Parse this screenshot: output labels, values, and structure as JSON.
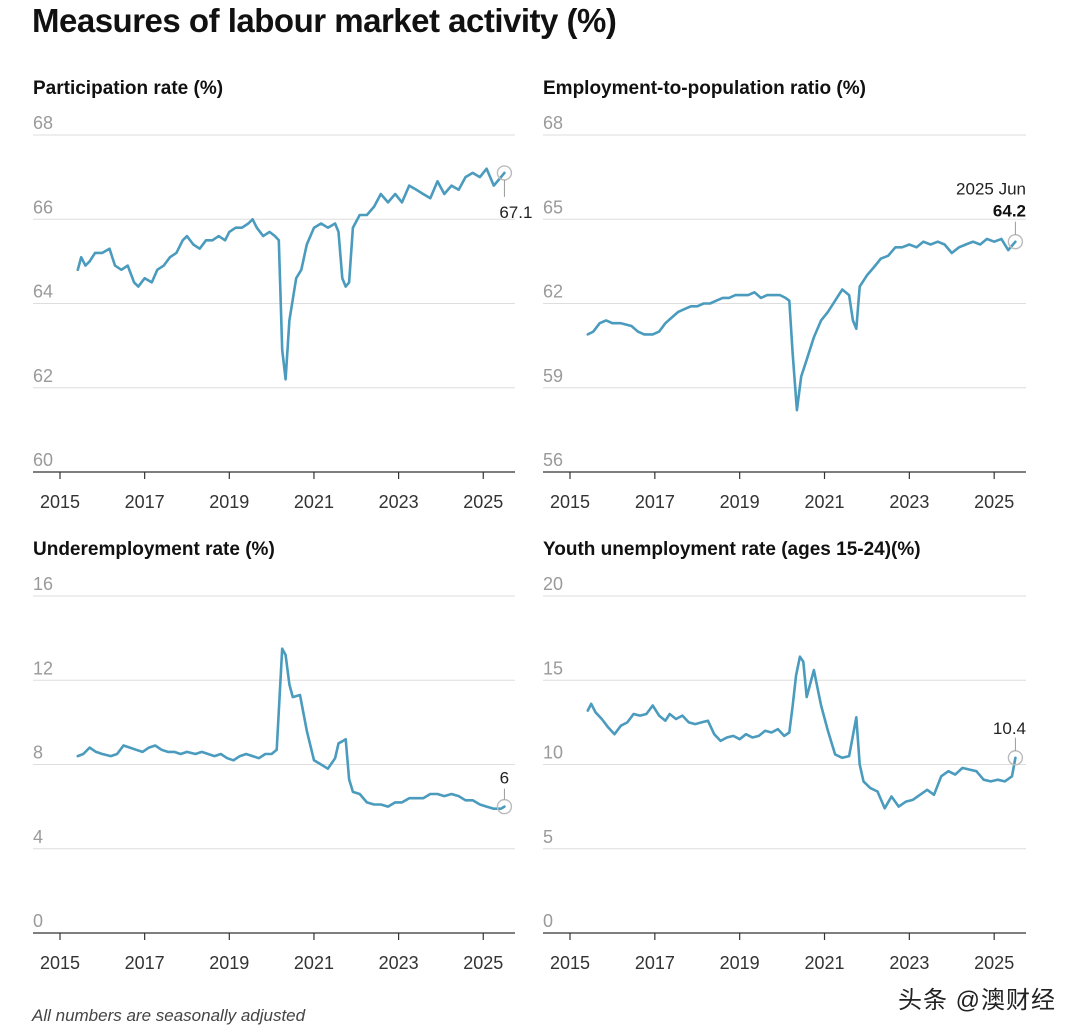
{
  "title": "Measures of labour market activity (%)",
  "footnote": "All numbers are seasonally adjusted",
  "watermark": "头条 @澳财经",
  "series_color": "#4a9bbd",
  "chart_data": [
    {
      "type": "line",
      "title": "Participation rate (%)",
      "ylim": [
        60,
        68
      ],
      "yticks": [
        60,
        62,
        64,
        66,
        68
      ],
      "xlim": [
        2015,
        2025.75
      ],
      "xticks": [
        "2015",
        "2017",
        "2019",
        "2021",
        "2023",
        "2025"
      ],
      "end_label": "67.1",
      "points": [
        [
          2015.42,
          64.8
        ],
        [
          2015.5,
          65.1
        ],
        [
          2015.6,
          64.9
        ],
        [
          2015.7,
          65.0
        ],
        [
          2015.83,
          65.2
        ],
        [
          2016.0,
          65.2
        ],
        [
          2016.17,
          65.3
        ],
        [
          2016.3,
          64.9
        ],
        [
          2016.45,
          64.8
        ],
        [
          2016.6,
          64.9
        ],
        [
          2016.75,
          64.5
        ],
        [
          2016.85,
          64.4
        ],
        [
          2017.0,
          64.6
        ],
        [
          2017.17,
          64.5
        ],
        [
          2017.3,
          64.8
        ],
        [
          2017.45,
          64.9
        ],
        [
          2017.6,
          65.1
        ],
        [
          2017.75,
          65.2
        ],
        [
          2017.9,
          65.5
        ],
        [
          2018.0,
          65.6
        ],
        [
          2018.15,
          65.4
        ],
        [
          2018.3,
          65.3
        ],
        [
          2018.45,
          65.5
        ],
        [
          2018.6,
          65.5
        ],
        [
          2018.75,
          65.6
        ],
        [
          2018.9,
          65.5
        ],
        [
          2019.0,
          65.7
        ],
        [
          2019.15,
          65.8
        ],
        [
          2019.3,
          65.8
        ],
        [
          2019.45,
          65.9
        ],
        [
          2019.55,
          66.0
        ],
        [
          2019.65,
          65.8
        ],
        [
          2019.8,
          65.6
        ],
        [
          2019.95,
          65.7
        ],
        [
          2020.08,
          65.6
        ],
        [
          2020.17,
          65.5
        ],
        [
          2020.25,
          62.9
        ],
        [
          2020.33,
          62.2
        ],
        [
          2020.42,
          63.6
        ],
        [
          2020.58,
          64.6
        ],
        [
          2020.7,
          64.8
        ],
        [
          2020.83,
          65.4
        ],
        [
          2021.0,
          65.8
        ],
        [
          2021.17,
          65.9
        ],
        [
          2021.33,
          65.8
        ],
        [
          2021.5,
          65.9
        ],
        [
          2021.58,
          65.7
        ],
        [
          2021.67,
          64.6
        ],
        [
          2021.75,
          64.4
        ],
        [
          2021.83,
          64.5
        ],
        [
          2021.92,
          65.8
        ],
        [
          2022.08,
          66.1
        ],
        [
          2022.25,
          66.1
        ],
        [
          2022.42,
          66.3
        ],
        [
          2022.58,
          66.6
        ],
        [
          2022.75,
          66.4
        ],
        [
          2022.92,
          66.6
        ],
        [
          2023.08,
          66.4
        ],
        [
          2023.25,
          66.8
        ],
        [
          2023.42,
          66.7
        ],
        [
          2023.58,
          66.6
        ],
        [
          2023.75,
          66.5
        ],
        [
          2023.92,
          66.9
        ],
        [
          2024.08,
          66.6
        ],
        [
          2024.25,
          66.8
        ],
        [
          2024.42,
          66.7
        ],
        [
          2024.58,
          67.0
        ],
        [
          2024.75,
          67.1
        ],
        [
          2024.92,
          67.0
        ],
        [
          2025.08,
          67.2
        ],
        [
          2025.25,
          66.8
        ],
        [
          2025.42,
          67.0
        ],
        [
          2025.5,
          67.1
        ]
      ]
    },
    {
      "type": "line",
      "title": "Employment-to-population ratio (%)",
      "ylim": [
        56,
        68
      ],
      "yticks": [
        56,
        59,
        62,
        65,
        68
      ],
      "xlim": [
        2015,
        2025.75
      ],
      "xticks": [
        "2015",
        "2017",
        "2019",
        "2021",
        "2023",
        "2025"
      ],
      "end_label": "64.2",
      "end_date": "2025 Jun",
      "points": [
        [
          2015.42,
          60.9
        ],
        [
          2015.55,
          61.0
        ],
        [
          2015.7,
          61.3
        ],
        [
          2015.85,
          61.4
        ],
        [
          2016.0,
          61.3
        ],
        [
          2016.2,
          61.3
        ],
        [
          2016.45,
          61.2
        ],
        [
          2016.6,
          61.0
        ],
        [
          2016.75,
          60.9
        ],
        [
          2016.95,
          60.9
        ],
        [
          2017.1,
          61.0
        ],
        [
          2017.25,
          61.3
        ],
        [
          2017.4,
          61.5
        ],
        [
          2017.55,
          61.7
        ],
        [
          2017.7,
          61.8
        ],
        [
          2017.85,
          61.9
        ],
        [
          2018.0,
          61.9
        ],
        [
          2018.15,
          62.0
        ],
        [
          2018.3,
          62.0
        ],
        [
          2018.45,
          62.1
        ],
        [
          2018.6,
          62.2
        ],
        [
          2018.75,
          62.2
        ],
        [
          2018.9,
          62.3
        ],
        [
          2019.05,
          62.3
        ],
        [
          2019.2,
          62.3
        ],
        [
          2019.35,
          62.4
        ],
        [
          2019.5,
          62.2
        ],
        [
          2019.65,
          62.3
        ],
        [
          2019.8,
          62.3
        ],
        [
          2019.95,
          62.3
        ],
        [
          2020.08,
          62.2
        ],
        [
          2020.17,
          62.1
        ],
        [
          2020.25,
          60.2
        ],
        [
          2020.35,
          58.2
        ],
        [
          2020.45,
          59.4
        ],
        [
          2020.58,
          60.0
        ],
        [
          2020.75,
          60.8
        ],
        [
          2020.92,
          61.4
        ],
        [
          2021.08,
          61.7
        ],
        [
          2021.25,
          62.1
        ],
        [
          2021.42,
          62.5
        ],
        [
          2021.58,
          62.3
        ],
        [
          2021.67,
          61.4
        ],
        [
          2021.75,
          61.1
        ],
        [
          2021.83,
          62.6
        ],
        [
          2022.0,
          63.0
        ],
        [
          2022.17,
          63.3
        ],
        [
          2022.33,
          63.6
        ],
        [
          2022.5,
          63.7
        ],
        [
          2022.67,
          64.0
        ],
        [
          2022.83,
          64.0
        ],
        [
          2023.0,
          64.1
        ],
        [
          2023.17,
          64.0
        ],
        [
          2023.33,
          64.2
        ],
        [
          2023.5,
          64.1
        ],
        [
          2023.67,
          64.2
        ],
        [
          2023.83,
          64.1
        ],
        [
          2024.0,
          63.8
        ],
        [
          2024.17,
          64.0
        ],
        [
          2024.33,
          64.1
        ],
        [
          2024.5,
          64.2
        ],
        [
          2024.67,
          64.1
        ],
        [
          2024.83,
          64.3
        ],
        [
          2025.0,
          64.2
        ],
        [
          2025.17,
          64.3
        ],
        [
          2025.33,
          63.9
        ],
        [
          2025.5,
          64.2
        ]
      ]
    },
    {
      "type": "line",
      "title": "Underemployment rate (%)",
      "ylim": [
        0,
        16
      ],
      "yticks": [
        0,
        4,
        8,
        12,
        16
      ],
      "xlim": [
        2015,
        2025.75
      ],
      "xticks": [
        "2015",
        "2017",
        "2019",
        "2021",
        "2023",
        "2025"
      ],
      "end_label": "6",
      "points": [
        [
          2015.42,
          8.4
        ],
        [
          2015.55,
          8.5
        ],
        [
          2015.7,
          8.8
        ],
        [
          2015.85,
          8.6
        ],
        [
          2016.0,
          8.5
        ],
        [
          2016.2,
          8.4
        ],
        [
          2016.35,
          8.5
        ],
        [
          2016.5,
          8.9
        ],
        [
          2016.65,
          8.8
        ],
        [
          2016.8,
          8.7
        ],
        [
          2016.95,
          8.6
        ],
        [
          2017.1,
          8.8
        ],
        [
          2017.25,
          8.9
        ],
        [
          2017.4,
          8.7
        ],
        [
          2017.55,
          8.6
        ],
        [
          2017.7,
          8.6
        ],
        [
          2017.85,
          8.5
        ],
        [
          2018.0,
          8.6
        ],
        [
          2018.2,
          8.5
        ],
        [
          2018.35,
          8.6
        ],
        [
          2018.5,
          8.5
        ],
        [
          2018.65,
          8.4
        ],
        [
          2018.8,
          8.5
        ],
        [
          2018.95,
          8.3
        ],
        [
          2019.1,
          8.2
        ],
        [
          2019.25,
          8.4
        ],
        [
          2019.4,
          8.5
        ],
        [
          2019.55,
          8.4
        ],
        [
          2019.7,
          8.3
        ],
        [
          2019.85,
          8.5
        ],
        [
          2020.0,
          8.5
        ],
        [
          2020.12,
          8.7
        ],
        [
          2020.25,
          13.5
        ],
        [
          2020.33,
          13.2
        ],
        [
          2020.42,
          11.8
        ],
        [
          2020.5,
          11.2
        ],
        [
          2020.67,
          11.3
        ],
        [
          2020.83,
          9.6
        ],
        [
          2021.0,
          8.2
        ],
        [
          2021.17,
          8.0
        ],
        [
          2021.33,
          7.8
        ],
        [
          2021.5,
          8.3
        ],
        [
          2021.58,
          9.0
        ],
        [
          2021.67,
          9.1
        ],
        [
          2021.75,
          9.2
        ],
        [
          2021.83,
          7.3
        ],
        [
          2021.92,
          6.7
        ],
        [
          2022.08,
          6.6
        ],
        [
          2022.25,
          6.2
        ],
        [
          2022.42,
          6.1
        ],
        [
          2022.58,
          6.1
        ],
        [
          2022.75,
          6.0
        ],
        [
          2022.92,
          6.2
        ],
        [
          2023.08,
          6.2
        ],
        [
          2023.25,
          6.4
        ],
        [
          2023.42,
          6.4
        ],
        [
          2023.58,
          6.4
        ],
        [
          2023.75,
          6.6
        ],
        [
          2023.92,
          6.6
        ],
        [
          2024.08,
          6.5
        ],
        [
          2024.25,
          6.6
        ],
        [
          2024.42,
          6.5
        ],
        [
          2024.58,
          6.3
        ],
        [
          2024.75,
          6.3
        ],
        [
          2024.92,
          6.1
        ],
        [
          2025.08,
          6.0
        ],
        [
          2025.25,
          5.9
        ],
        [
          2025.42,
          5.9
        ],
        [
          2025.5,
          6.0
        ]
      ]
    },
    {
      "type": "line",
      "title": "Youth unemployment rate (ages 15-24)(%)",
      "ylim": [
        0,
        20
      ],
      "yticks": [
        0,
        5,
        10,
        15,
        20
      ],
      "xlim": [
        2015,
        2025.75
      ],
      "xticks": [
        "2015",
        "2017",
        "2019",
        "2021",
        "2023",
        "2025"
      ],
      "end_label": "10.4",
      "points": [
        [
          2015.42,
          13.2
        ],
        [
          2015.5,
          13.6
        ],
        [
          2015.6,
          13.1
        ],
        [
          2015.75,
          12.7
        ],
        [
          2015.9,
          12.2
        ],
        [
          2016.05,
          11.8
        ],
        [
          2016.2,
          12.3
        ],
        [
          2016.35,
          12.5
        ],
        [
          2016.5,
          13.0
        ],
        [
          2016.65,
          12.9
        ],
        [
          2016.8,
          13.0
        ],
        [
          2016.95,
          13.5
        ],
        [
          2017.1,
          12.9
        ],
        [
          2017.25,
          12.6
        ],
        [
          2017.35,
          13.0
        ],
        [
          2017.5,
          12.7
        ],
        [
          2017.65,
          12.9
        ],
        [
          2017.8,
          12.5
        ],
        [
          2017.95,
          12.4
        ],
        [
          2018.1,
          12.5
        ],
        [
          2018.25,
          12.6
        ],
        [
          2018.4,
          11.8
        ],
        [
          2018.55,
          11.4
        ],
        [
          2018.7,
          11.6
        ],
        [
          2018.85,
          11.7
        ],
        [
          2019.0,
          11.5
        ],
        [
          2019.15,
          11.8
        ],
        [
          2019.3,
          11.6
        ],
        [
          2019.45,
          11.7
        ],
        [
          2019.6,
          12.0
        ],
        [
          2019.75,
          11.9
        ],
        [
          2019.9,
          12.1
        ],
        [
          2020.05,
          11.7
        ],
        [
          2020.17,
          11.9
        ],
        [
          2020.25,
          13.5
        ],
        [
          2020.33,
          15.3
        ],
        [
          2020.42,
          16.4
        ],
        [
          2020.5,
          16.1
        ],
        [
          2020.58,
          14.0
        ],
        [
          2020.75,
          15.6
        ],
        [
          2020.83,
          14.6
        ],
        [
          2020.92,
          13.5
        ],
        [
          2021.08,
          12.0
        ],
        [
          2021.25,
          10.6
        ],
        [
          2021.42,
          10.4
        ],
        [
          2021.58,
          10.5
        ],
        [
          2021.75,
          12.8
        ],
        [
          2021.83,
          10.0
        ],
        [
          2021.92,
          9.0
        ],
        [
          2022.08,
          8.6
        ],
        [
          2022.25,
          8.4
        ],
        [
          2022.42,
          7.4
        ],
        [
          2022.58,
          8.1
        ],
        [
          2022.75,
          7.5
        ],
        [
          2022.92,
          7.8
        ],
        [
          2023.08,
          7.9
        ],
        [
          2023.25,
          8.2
        ],
        [
          2023.42,
          8.5
        ],
        [
          2023.58,
          8.2
        ],
        [
          2023.75,
          9.3
        ],
        [
          2023.92,
          9.6
        ],
        [
          2024.08,
          9.4
        ],
        [
          2024.25,
          9.8
        ],
        [
          2024.42,
          9.7
        ],
        [
          2024.58,
          9.6
        ],
        [
          2024.75,
          9.1
        ],
        [
          2024.92,
          9.0
        ],
        [
          2025.08,
          9.1
        ],
        [
          2025.25,
          9.0
        ],
        [
          2025.42,
          9.3
        ],
        [
          2025.5,
          10.4
        ]
      ]
    }
  ]
}
